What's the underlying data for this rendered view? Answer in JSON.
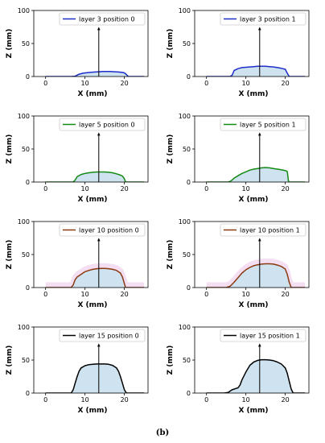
{
  "caption": "(b)",
  "colors": {
    "fill": "#cfe2f0",
    "stem": "#000000",
    "axes": "#000000",
    "blush": "#f4dff2",
    "series": {
      "layer 3": "#1f2ec8",
      "layer 5": "#138a13",
      "layer 10": "#8b3a12",
      "layer 15": "#000000"
    }
  },
  "chart_data": [
    {
      "type": "area",
      "row": 0,
      "col": 0,
      "xlabel": "X (mm)",
      "ylabel": "Z (mm)",
      "xlim": [
        -3,
        26
      ],
      "ylim": [
        0,
        100
      ],
      "xticks": [
        0,
        10,
        20
      ],
      "yticks": [
        0,
        50,
        100
      ],
      "legend": "layer 3 position 0",
      "legend_position": "upper-right",
      "series_key": "layer 3",
      "stem": {
        "x": 13.5,
        "y_top": 74
      },
      "series": [
        {
          "name": "layer 3 position 0",
          "x": [
            0,
            6.5,
            7.5,
            8.5,
            9.5,
            10.5,
            11.5,
            12.5,
            13.5,
            14.5,
            15.5,
            16.5,
            17.5,
            18.5,
            19.5,
            20,
            20.5,
            21,
            25
          ],
          "y": [
            0,
            0,
            0.5,
            3.5,
            5,
            5.8,
            6.3,
            6.8,
            7.2,
            7.5,
            7.6,
            7.5,
            7.2,
            6.8,
            6.2,
            5.5,
            3,
            0,
            0
          ]
        }
      ]
    },
    {
      "type": "area",
      "row": 0,
      "col": 1,
      "xlabel": "X (mm)",
      "ylabel": "Z (mm)",
      "xlim": [
        -3,
        26
      ],
      "ylim": [
        0,
        100
      ],
      "xticks": [
        0,
        10,
        20
      ],
      "yticks": [
        0,
        50,
        100
      ],
      "legend": "layer 3 position 1",
      "legend_position": "upper-right",
      "series_key": "layer 3",
      "stem": {
        "x": 13.5,
        "y_top": 74
      },
      "series": [
        {
          "name": "layer 3 position 1",
          "x": [
            0,
            6,
            6.5,
            7,
            8,
            9,
            10,
            11,
            12,
            13,
            14,
            15,
            16,
            17,
            18,
            19,
            20,
            20.5,
            21,
            25
          ],
          "y": [
            0,
            0,
            2,
            9,
            12,
            13.5,
            14,
            14.5,
            15,
            15.5,
            15.5,
            15.5,
            15,
            14.5,
            13.5,
            12.5,
            11,
            5,
            0,
            0
          ]
        }
      ]
    },
    {
      "type": "area",
      "row": 1,
      "col": 0,
      "xlabel": "X (mm)",
      "ylabel": "Z (mm)",
      "xlim": [
        -3,
        26
      ],
      "ylim": [
        0,
        100
      ],
      "xticks": [
        0,
        10,
        20
      ],
      "yticks": [
        0,
        50,
        100
      ],
      "legend": "layer 5 position 0",
      "legend_position": "upper-right",
      "series_key": "layer 5",
      "stem": {
        "x": 13.5,
        "y_top": 74
      },
      "series": [
        {
          "name": "layer 5 position 0",
          "x": [
            0,
            7,
            7.5,
            8,
            9,
            10,
            11,
            12,
            13,
            14,
            15,
            16,
            17,
            18,
            19,
            19.5,
            20,
            20.3,
            25
          ],
          "y": [
            0,
            0,
            3,
            8,
            11.5,
            13,
            14,
            14.8,
            15.2,
            15.3,
            15.2,
            14.8,
            14,
            12.5,
            10.5,
            9,
            5,
            0,
            0
          ]
        }
      ]
    },
    {
      "type": "area",
      "row": 1,
      "col": 1,
      "xlabel": "X (mm)",
      "ylabel": "Z (mm)",
      "xlim": [
        -3,
        26
      ],
      "ylim": [
        0,
        100
      ],
      "xticks": [
        0,
        10,
        20
      ],
      "yticks": [
        0,
        50,
        100
      ],
      "legend": "layer 5 position 1",
      "legend_position": "upper-right",
      "series_key": "layer 5",
      "stem": {
        "x": 13.5,
        "y_top": 74
      },
      "series": [
        {
          "name": "layer 5 position 1",
          "x": [
            0,
            5.5,
            6,
            6.5,
            7,
            8,
            9,
            10,
            11,
            12,
            13,
            14,
            15,
            16,
            17,
            18,
            19,
            20,
            20.5,
            20.8,
            21,
            25
          ],
          "y": [
            0,
            0,
            1,
            3,
            6,
            9.5,
            13,
            15.5,
            18,
            19.5,
            20.5,
            21.5,
            22,
            21.5,
            20.5,
            19.5,
            18.5,
            17.5,
            16,
            2,
            0,
            0
          ]
        }
      ]
    },
    {
      "type": "area",
      "row": 2,
      "col": 0,
      "xlabel": "X (mm)",
      "ylabel": "Z (mm)",
      "xlim": [
        -3,
        26
      ],
      "ylim": [
        0,
        100
      ],
      "xticks": [
        0,
        10,
        20
      ],
      "yticks": [
        0,
        50,
        100
      ],
      "legend": "layer 10 position 0",
      "legend_position": "upper-right",
      "series_key": "layer 10",
      "stem": {
        "x": 13.5,
        "y_top": 74
      },
      "series": [
        {
          "name": "layer 10 position 0",
          "x": [
            0,
            6.5,
            7,
            7.5,
            8,
            9,
            10,
            11,
            12,
            13,
            14,
            15,
            16,
            17,
            18,
            19,
            19.5,
            20,
            20.3,
            25
          ],
          "y": [
            0,
            0,
            4,
            12,
            16,
            20,
            24,
            26,
            27.5,
            28.5,
            29,
            29,
            28.5,
            27.5,
            26,
            22,
            16,
            6,
            0,
            0
          ]
        }
      ]
    },
    {
      "type": "area",
      "row": 2,
      "col": 1,
      "xlabel": "X (mm)",
      "ylabel": "Z (mm)",
      "xlim": [
        -3,
        26
      ],
      "ylim": [
        0,
        100
      ],
      "xticks": [
        0,
        10,
        20
      ],
      "yticks": [
        0,
        50,
        100
      ],
      "legend": "layer 10 position 1",
      "legend_position": "upper-right",
      "series_key": "layer 10",
      "stem": {
        "x": 13.5,
        "y_top": 74
      },
      "series": [
        {
          "name": "layer 10 position 1",
          "x": [
            0,
            5,
            6,
            7,
            8,
            9,
            10,
            11,
            12,
            13,
            14,
            15,
            16,
            17,
            18,
            19,
            20,
            20.5,
            21,
            21.5,
            25
          ],
          "y": [
            0,
            0,
            2,
            8,
            15,
            22,
            27,
            30.5,
            33,
            34.5,
            35.5,
            36,
            36,
            35.5,
            34,
            32,
            28,
            20,
            8,
            0,
            0
          ]
        }
      ]
    },
    {
      "type": "area",
      "row": 3,
      "col": 0,
      "xlabel": "X (mm)",
      "ylabel": "Z (mm)",
      "xlim": [
        -3,
        26
      ],
      "ylim": [
        0,
        100
      ],
      "xticks": [
        0,
        10,
        20
      ],
      "yticks": [
        0,
        50,
        100
      ],
      "legend": "layer 15 position 0",
      "legend_position": "upper-right",
      "series_key": "layer 15",
      "stem": {
        "x": 13.5,
        "y_top": 74
      },
      "series": [
        {
          "name": "layer 15 position 0",
          "x": [
            0,
            6.5,
            7,
            7.5,
            8,
            8.5,
            9,
            10,
            11,
            12,
            13,
            14,
            15,
            16,
            17,
            18,
            18.5,
            19,
            19.5,
            20,
            20.5,
            25
          ],
          "y": [
            0,
            0,
            5,
            15,
            25,
            33,
            38,
            41.5,
            43,
            43.5,
            44,
            44,
            44,
            43.5,
            42,
            38,
            33,
            25,
            15,
            5,
            0,
            0
          ]
        }
      ]
    },
    {
      "type": "area",
      "row": 3,
      "col": 1,
      "xlabel": "X (mm)",
      "ylabel": "Z (mm)",
      "xlim": [
        -3,
        26
      ],
      "ylim": [
        0,
        100
      ],
      "xticks": [
        0,
        10,
        20
      ],
      "yticks": [
        0,
        50,
        100
      ],
      "legend": "layer 15 position 1",
      "legend_position": "upper-right",
      "series_key": "layer 15",
      "stem": {
        "x": 13.5,
        "y_top": 74
      },
      "series": [
        {
          "name": "layer 15 position 1",
          "x": [
            0,
            4.5,
            5.5,
            6,
            6.5,
            7,
            8,
            8.5,
            9,
            10,
            11,
            12,
            13,
            14,
            15,
            16,
            17,
            18,
            19,
            20,
            20.5,
            21,
            21.5,
            22,
            25
          ],
          "y": [
            0,
            0,
            1,
            3,
            5,
            6,
            8,
            12,
            20,
            32,
            42,
            47,
            49.5,
            50.5,
            50.5,
            50,
            49,
            47,
            44,
            38,
            30,
            18,
            6,
            0,
            0
          ]
        }
      ]
    }
  ]
}
